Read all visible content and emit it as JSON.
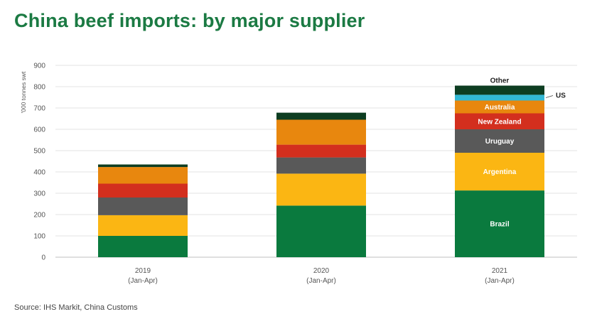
{
  "title": "China beef imports: by major supplier",
  "source": "Source: IHS Markit, China Customs",
  "colors": {
    "Brazil": "#0a7a3e",
    "Argentina": "#fbb613",
    "Uruguay": "#595959",
    "New Zealand": "#d32f1e",
    "Australia": "#e8870e",
    "US": "#32b8d4",
    "Other": "#0d3d21"
  },
  "chart_data": {
    "type": "bar",
    "stacked": true,
    "title": "China beef imports: by major supplier",
    "ylabel": "'000 tonnes swt",
    "xlabel": "",
    "ylim": [
      0,
      900
    ],
    "yticks": [
      0,
      100,
      200,
      300,
      400,
      500,
      600,
      700,
      800,
      900
    ],
    "grid": true,
    "categories": [
      {
        "year": "2019",
        "period": "(Jan-Apr)"
      },
      {
        "year": "2020",
        "period": "(Jan-Apr)"
      },
      {
        "year": "2021",
        "period": "(Jan-Apr)"
      }
    ],
    "series": [
      {
        "name": "Brazil",
        "values": [
          100,
          242,
          313
        ]
      },
      {
        "name": "Argentina",
        "values": [
          97,
          150,
          177
        ]
      },
      {
        "name": "Uruguay",
        "values": [
          83,
          76,
          110
        ]
      },
      {
        "name": "New Zealand",
        "values": [
          65,
          60,
          75
        ]
      },
      {
        "name": "Australia",
        "values": [
          78,
          117,
          60
        ]
      },
      {
        "name": "US",
        "values": [
          0,
          0,
          27
        ]
      },
      {
        "name": "Other",
        "values": [
          12,
          33,
          43
        ]
      }
    ],
    "segment_labels_on_category": "2021 (Jan-Apr)"
  }
}
